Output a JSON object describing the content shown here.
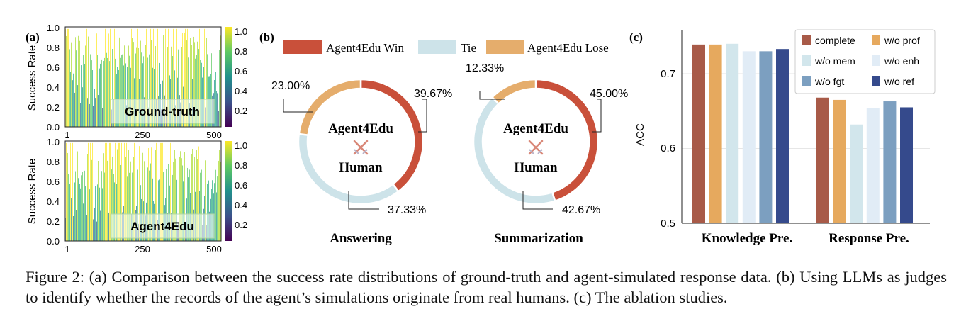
{
  "panels": {
    "a": {
      "label": "(a)",
      "ylabel": "Success Rate",
      "yticks": [
        "0.0",
        "0.2",
        "0.4",
        "0.6",
        "0.8",
        "1.0"
      ],
      "xticks": [
        "1",
        "250",
        "500"
      ],
      "colorbar_ticks": [
        "0.2",
        "0.4",
        "0.6",
        "0.8",
        "1.0"
      ],
      "subplots": [
        {
          "label": "Ground-truth"
        },
        {
          "label": "Agent4Edu"
        }
      ]
    },
    "b": {
      "label": "(b)",
      "legend": [
        {
          "name": "Agent4Edu Win",
          "color": "#c9503a"
        },
        {
          "name": "Tie",
          "color": "#cde3e9"
        },
        {
          "name": "Agent4Edu Lose",
          "color": "#e5ad6c"
        }
      ],
      "center_top": "Agent4Edu",
      "center_bottom": "Human",
      "donuts": [
        {
          "title": "Answering",
          "labels": [
            "39.67%",
            "37.33%",
            "23.00%"
          ]
        },
        {
          "title": "Summarization",
          "labels": [
            "45.00%",
            "42.67%",
            "12.33%"
          ]
        }
      ]
    },
    "c": {
      "label": "(c)",
      "ylabel": "ACC",
      "yticks": [
        "0.5",
        "0.6",
        "0.7"
      ],
      "groups": [
        "Knowledge Pre.",
        "Response Pre."
      ],
      "legend": [
        {
          "name": "complete",
          "color": "#a85a48"
        },
        {
          "name": "w/o prof",
          "color": "#e6a95e"
        },
        {
          "name": "w/o mem",
          "color": "#d2e6ec"
        },
        {
          "name": "w/o enh",
          "color": "#e1ecf6"
        },
        {
          "name": "w/o fgt",
          "color": "#7c9fc0"
        },
        {
          "name": "w/o ref",
          "color": "#354a8c"
        }
      ]
    }
  },
  "chart_data": [
    {
      "type": "bar",
      "title": "Ground-truth",
      "ylabel": "Success Rate",
      "x_range": [
        1,
        500
      ],
      "ylim": [
        0.0,
        1.0
      ],
      "colormap": "viridis",
      "colorbar_range": [
        0.0,
        1.0
      ]
    },
    {
      "type": "bar",
      "title": "Agent4Edu",
      "ylabel": "Success Rate",
      "x_range": [
        1,
        500
      ],
      "ylim": [
        0.0,
        1.0
      ],
      "colormap": "viridis",
      "colorbar_range": [
        0.0,
        1.0
      ]
    },
    {
      "type": "pie",
      "title": "Answering",
      "categories": [
        "Agent4Edu Win",
        "Tie",
        "Agent4Edu Lose"
      ],
      "values": [
        39.67,
        37.33,
        23.0
      ]
    },
    {
      "type": "pie",
      "title": "Summarization",
      "categories": [
        "Agent4Edu Win",
        "Tie",
        "Agent4Edu Lose"
      ],
      "values": [
        45.0,
        42.67,
        12.33
      ]
    },
    {
      "type": "bar",
      "ylabel": "ACC",
      "ylim": [
        0.5,
        0.75
      ],
      "categories": [
        "Knowledge Pre.",
        "Response Pre."
      ],
      "series": [
        {
          "name": "complete",
          "values": [
            0.739,
            0.668
          ]
        },
        {
          "name": "w/o prof",
          "values": [
            0.739,
            0.665
          ]
        },
        {
          "name": "w/o mem",
          "values": [
            0.74,
            0.632
          ]
        },
        {
          "name": "w/o enh",
          "values": [
            0.73,
            0.654
          ]
        },
        {
          "name": "w/o fgt",
          "values": [
            0.73,
            0.663
          ]
        },
        {
          "name": "w/o ref",
          "values": [
            0.733,
            0.655
          ]
        }
      ]
    }
  ],
  "caption": "Figure 2: (a) Comparison between the success rate distributions of ground-truth and agent-simulated response data. (b) Using LLMs as judges to identify whether the records of the agent’s simulations originate from real humans. (c) The ablation studies."
}
